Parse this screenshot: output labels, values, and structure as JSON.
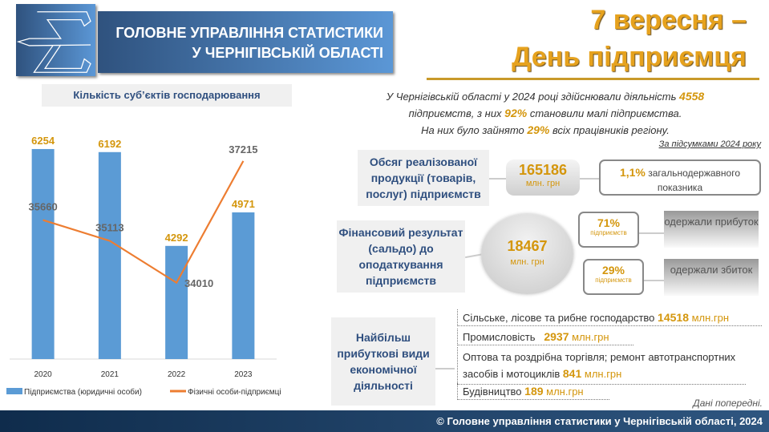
{
  "header": {
    "org_line1": "ГОЛОВНЕ УПРАВЛІННЯ СТАТИСТИКИ",
    "org_line2": "У ЧЕРНІГІВСЬКІЙ ОБЛАСТІ",
    "headline_line1": "7 вересня –",
    "headline_line2": "День підприємця"
  },
  "chart_data": {
    "type": "bar+line",
    "title": "Кількість суб’єктів господарювання",
    "categories": [
      "2020",
      "2021",
      "2022",
      "2023"
    ],
    "series": [
      {
        "name": "Підприємства (юридичні особи)",
        "type": "bar",
        "color": "#5b9bd5",
        "values": [
          6254,
          6192,
          4292,
          4971
        ],
        "ylim": [
          2000,
          7000
        ]
      },
      {
        "name": "Фізичні особи-підприємці",
        "type": "line",
        "color": "#ed7d31",
        "values": [
          35660,
          35113,
          34010,
          37215
        ],
        "ylim": [
          32000,
          38500
        ]
      }
    ]
  },
  "intro": {
    "t1": "У Чернігівській області у 2024 році здійснювали діяльність ",
    "v1": "4558",
    "t2": "підприємств, з них ",
    "v2": "92%",
    "t3": " становили малі підприємства.",
    "t4": "На них було зайнято ",
    "v3": "29%",
    "t5": " всіх працівників регіону.",
    "period": "За підсумками 2024 року"
  },
  "sales": {
    "label": "Обсяг реалізованої продукції (товарів, послуг) підприємств",
    "value": "165186",
    "unit": "млн. грн",
    "share": "1,1%",
    "share_text": "загальнодержавного показника"
  },
  "fin": {
    "label": "Фінансовий результат (сальдо) до оподаткування підприємств",
    "value": "18467",
    "unit": "млн. грн",
    "profit_pct": "71%",
    "profit_sub": "підприємств",
    "profit_text": "одержали прибуток",
    "loss_pct": "29%",
    "loss_sub": "підприємств",
    "loss_text": "одержали збиток"
  },
  "top": {
    "label": "Найбільш прибуткові види економічної діяльності",
    "unit": "млн.грн",
    "items": [
      {
        "name": "Сільське, лісове та рибне господарство",
        "value": "14518"
      },
      {
        "name": "Промисловість",
        "value": "2937"
      },
      {
        "name": "Оптова та роздрібна торгівля; ремонт автотранспортних засобів і мотоциклів",
        "value": "841"
      },
      {
        "name": "Будівництво",
        "value": "189"
      }
    ],
    "note": "Дані попередні."
  },
  "footer": "© Головне управління статистики у Чернігівській області, 2024"
}
